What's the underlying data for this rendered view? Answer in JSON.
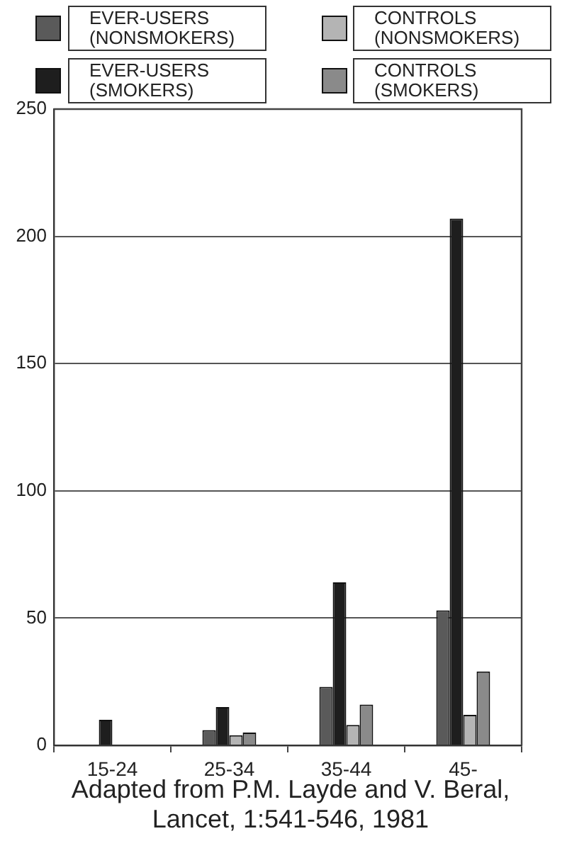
{
  "chart_data": {
    "type": "bar",
    "categories": [
      "15-24",
      "25-34",
      "35-44",
      "45-"
    ],
    "series": [
      {
        "name": "EVER-USERS (NONSMOKERS)",
        "color": "#5a5a5a",
        "values": [
          null,
          6,
          23,
          53
        ]
      },
      {
        "name": "EVER-USERS (SMOKERS)",
        "color": "#1e1e1e",
        "values": [
          10,
          15,
          64,
          207
        ]
      },
      {
        "name": "CONTROLS (NONSMOKERS)",
        "color": "#b4b4b4",
        "values": [
          null,
          4,
          8,
          12
        ]
      },
      {
        "name": "CONTROLS (SMOKERS)",
        "color": "#8a8a8a",
        "values": [
          null,
          5,
          16,
          29
        ]
      }
    ],
    "ylim": [
      0,
      250
    ],
    "yticks": [
      0,
      50,
      100,
      150,
      200,
      250
    ],
    "grid": "y",
    "legend": "top",
    "annotations": [
      "Adapted from P.M. Layde and V. Beral, Lancet, 1:541-546, 1981"
    ]
  }
}
